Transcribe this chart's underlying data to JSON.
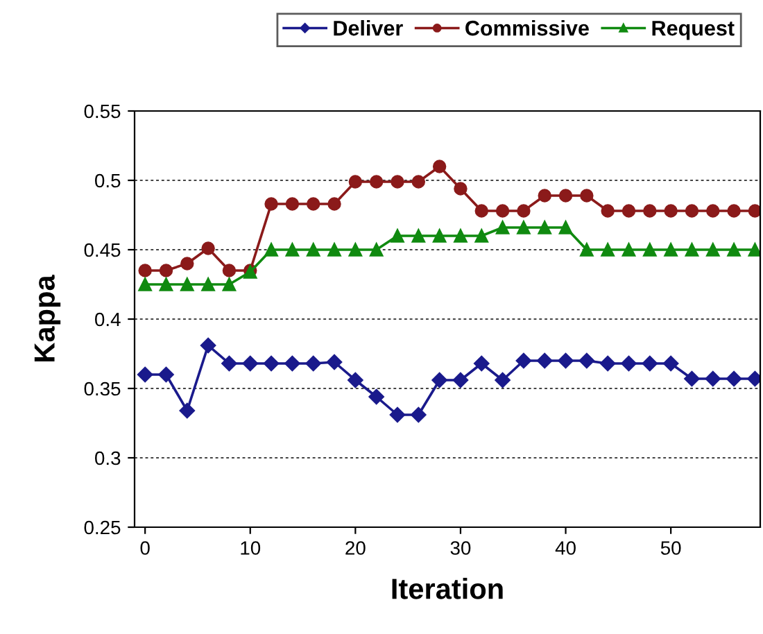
{
  "chart_data": {
    "type": "line",
    "xlabel": "Iteration",
    "ylabel": "Kappa",
    "x": [
      0,
      2,
      4,
      6,
      8,
      10,
      12,
      14,
      16,
      18,
      20,
      22,
      24,
      26,
      28,
      30,
      32,
      34,
      36,
      38,
      40,
      42,
      44,
      46,
      48,
      50,
      52,
      54,
      56,
      58
    ],
    "series": [
      {
        "name": "Deliver",
        "color": "#1a1a8c",
        "marker": "diamond",
        "values": [
          0.36,
          0.36,
          0.334,
          0.381,
          0.368,
          0.368,
          0.368,
          0.368,
          0.368,
          0.369,
          0.356,
          0.344,
          0.331,
          0.331,
          0.356,
          0.356,
          0.368,
          0.356,
          0.37,
          0.37,
          0.37,
          0.37,
          0.368,
          0.368,
          0.368,
          0.368,
          0.357,
          0.357,
          0.357,
          0.357
        ]
      },
      {
        "name": "Commissive",
        "color": "#8b1a1a",
        "marker": "circle",
        "values": [
          0.435,
          0.435,
          0.44,
          0.451,
          0.435,
          0.435,
          0.483,
          0.483,
          0.483,
          0.483,
          0.499,
          0.499,
          0.499,
          0.499,
          0.51,
          0.494,
          0.478,
          0.478,
          0.478,
          0.489,
          0.489,
          0.489,
          0.478,
          0.478,
          0.478,
          0.478,
          0.478,
          0.478,
          0.478,
          0.478
        ]
      },
      {
        "name": "Request",
        "color": "#108a10",
        "marker": "triangle",
        "values": [
          0.425,
          0.425,
          0.425,
          0.425,
          0.425,
          0.434,
          0.45,
          0.45,
          0.45,
          0.45,
          0.45,
          0.45,
          0.46,
          0.46,
          0.46,
          0.46,
          0.46,
          0.466,
          0.466,
          0.466,
          0.466,
          0.45,
          0.45,
          0.45,
          0.45,
          0.45,
          0.45,
          0.45,
          0.45,
          0.45
        ]
      }
    ],
    "xlim": [
      -1,
      58.5
    ],
    "xticks": [
      0,
      10,
      20,
      30,
      40,
      50
    ],
    "ylim": [
      0.25,
      0.55
    ],
    "yticks": [
      0.25,
      0.3,
      0.35,
      0.4,
      0.45,
      0.5,
      0.55
    ],
    "grid": "y",
    "legend": "top right",
    "line_style": "solid"
  }
}
